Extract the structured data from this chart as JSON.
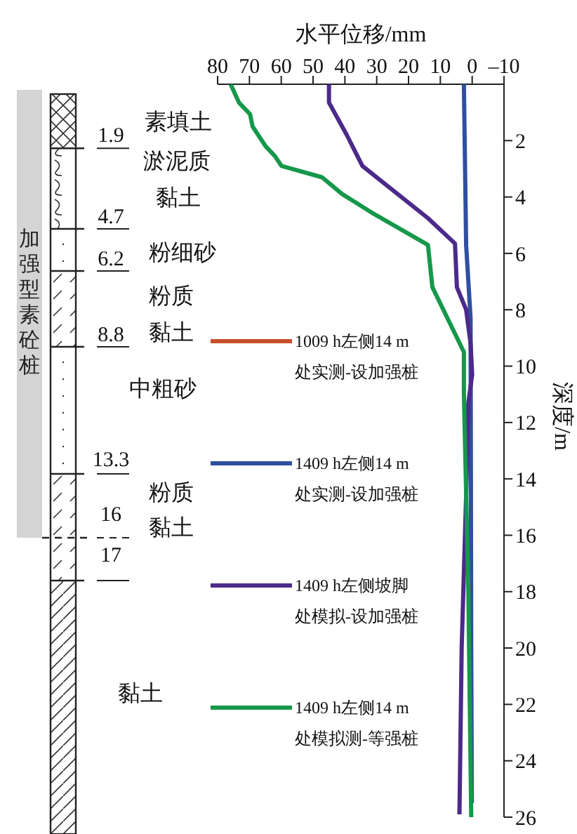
{
  "chart_data": {
    "type": "line",
    "xlabel": "水平位移/mm",
    "ylabel": "深度/m",
    "xlim": [
      80,
      -10
    ],
    "xticks": [
      80,
      70,
      60,
      50,
      40,
      30,
      20,
      10,
      0,
      {
        "value": -10,
        "label": "–10"
      }
    ],
    "ylim": [
      26,
      0
    ],
    "yticks": [
      2,
      4,
      6,
      8,
      10,
      12,
      14,
      16,
      18,
      20,
      22,
      24,
      26
    ],
    "grid": false,
    "legend": "left",
    "marker": "none",
    "line_style": "solid",
    "series": [
      {
        "name": "1009 h左侧14 m处实测-设加强桩",
        "color": "#c8502a"
      },
      {
        "name": "1409 h左侧14 m处实测-设加强桩",
        "color": "#2f4fa0",
        "x": [
          2.6,
          1.9,
          0.5,
          0.4,
          0.3,
          0.1
        ],
        "values": [
          0,
          5.7,
          8.3,
          14,
          20,
          25.5
        ]
      },
      {
        "name": "1409 h左侧坡脚处模拟-设加强桩",
        "color": "#4b2a8a",
        "x": [
          45,
          45,
          39.4,
          34.5,
          13.9,
          5.4,
          4.8,
          1.9,
          0.5,
          0,
          1.2,
          1.9,
          3.3,
          4
        ],
        "values": [
          0,
          0.65,
          1.8,
          2.9,
          4.75,
          5.65,
          7.2,
          8,
          9.2,
          10.3,
          11.3,
          14.6,
          20,
          25.9
        ]
      },
      {
        "name": "1409 h左侧14 m处模拟测-等强桩",
        "color": "#16984a",
        "x": [
          75.9,
          73.3,
          69.8,
          69,
          64.9,
          62,
          59.9,
          47.2,
          40.8,
          30.9,
          13.9,
          12.5,
          2.6,
          2.6,
          1.2,
          0.3
        ],
        "values": [
          0,
          0.65,
          1.06,
          1.5,
          2.2,
          2.55,
          2.9,
          3.3,
          3.9,
          4.6,
          5.7,
          7.2,
          9.5,
          11,
          18,
          26
        ]
      }
    ],
    "annotations": [
      "加强型素砼桩",
      "素填土",
      "1.9",
      "淤泥质",
      "黏土",
      "4.7",
      "6.2",
      "粉细砂",
      "粉质",
      "黏土",
      "8.8",
      "中粗砂",
      "13.3",
      "粉质",
      "16",
      "黏土",
      "17",
      "黏土"
    ]
  }
}
